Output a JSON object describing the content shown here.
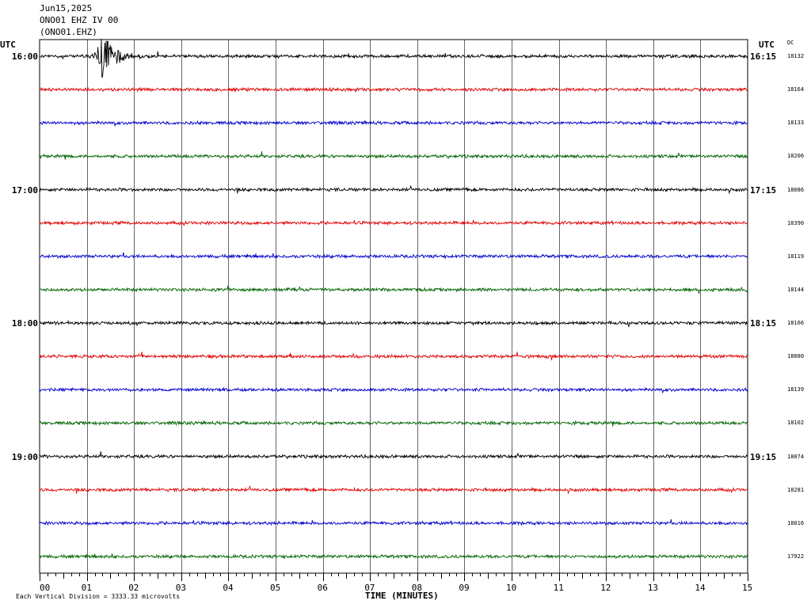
{
  "header": {
    "date": "Jun15,2025",
    "station": "ONO01 EHZ IV 00",
    "channel": "(ONO01.EHZ)"
  },
  "axis": {
    "utc_left": "UTC",
    "utc_right": "UTC",
    "dc_label": "DC",
    "xlabel": "TIME (MINUTES)",
    "footer": "Each Vertical Division = 3333.33 microvolts"
  },
  "chart_data": {
    "type": "line",
    "title": "",
    "xlabel": "TIME (MINUTES)",
    "ylabel": "",
    "x_ticks": [
      "00",
      "01",
      "02",
      "03",
      "04",
      "05",
      "06",
      "07",
      "08",
      "09",
      "10",
      "11",
      "12",
      "13",
      "14",
      "15"
    ],
    "xlim": [
      0,
      15
    ],
    "grid": true,
    "trace_colors": [
      "#000000",
      "#e00000",
      "#0000cc",
      "#006400"
    ],
    "rows": [
      {
        "left_label": "16:00",
        "right_label": "16:15",
        "dc": "18132"
      },
      {
        "left_label": "",
        "right_label": "",
        "dc": "18164"
      },
      {
        "left_label": "",
        "right_label": "",
        "dc": "18133"
      },
      {
        "left_label": "",
        "right_label": "",
        "dc": "18206"
      },
      {
        "left_label": "17:00",
        "right_label": "17:15",
        "dc": "18086"
      },
      {
        "left_label": "",
        "right_label": "",
        "dc": "18390"
      },
      {
        "left_label": "",
        "right_label": "",
        "dc": "18119"
      },
      {
        "left_label": "",
        "right_label": "",
        "dc": "18144"
      },
      {
        "left_label": "18:00",
        "right_label": "18:15",
        "dc": "18166"
      },
      {
        "left_label": "",
        "right_label": "",
        "dc": "18080"
      },
      {
        "left_label": "",
        "right_label": "",
        "dc": "18139"
      },
      {
        "left_label": "",
        "right_label": "",
        "dc": "18102"
      },
      {
        "left_label": "19:00",
        "right_label": "19:15",
        "dc": "18074"
      },
      {
        "left_label": "",
        "right_label": "",
        "dc": "18281"
      },
      {
        "left_label": "",
        "right_label": "",
        "dc": "18016"
      },
      {
        "left_label": "",
        "right_label": "",
        "dc": "17922"
      }
    ],
    "events": [
      {
        "row": 0,
        "minute": 1.33,
        "note": "earthquake signal"
      }
    ]
  }
}
